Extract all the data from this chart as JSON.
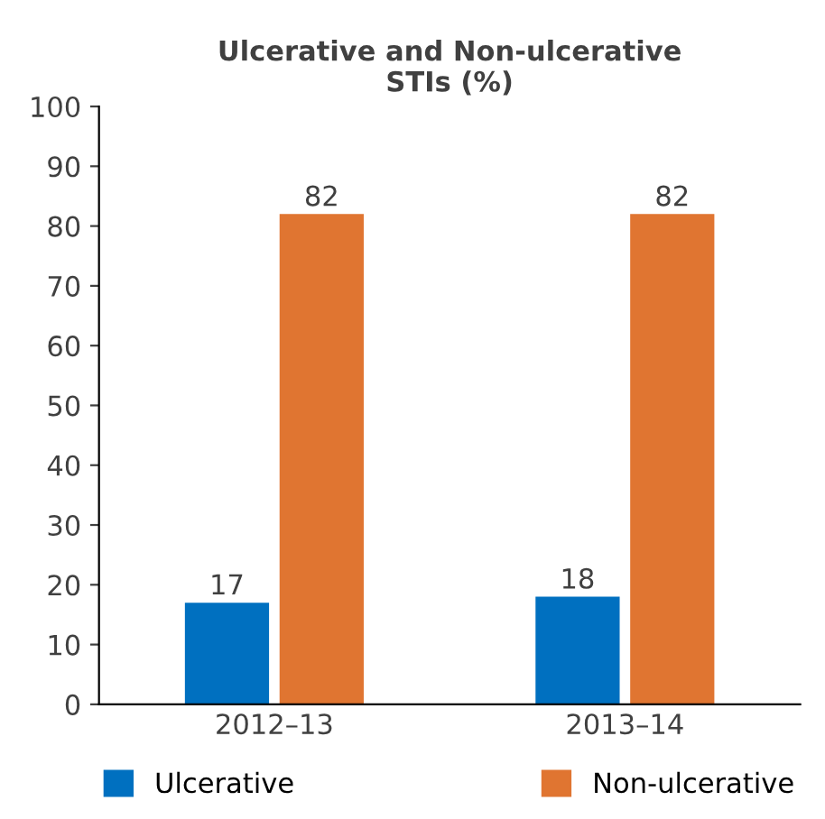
{
  "chart_data": {
    "type": "bar",
    "title": "Ulcerative and Non-ulcerative\nSTIs (%)",
    "categories": [
      "2012–13",
      "2013–14"
    ],
    "series": [
      {
        "name": "Ulcerative",
        "color": "#0070c0",
        "values": [
          17,
          18
        ]
      },
      {
        "name": "Non-ulcerative",
        "color": "#e07531",
        "values": [
          82,
          82
        ]
      }
    ],
    "ylim": [
      0,
      100
    ],
    "yticks": [
      0,
      10,
      20,
      30,
      40,
      50,
      60,
      70,
      80,
      90,
      100
    ],
    "data_labels": true,
    "grid": false,
    "legend": "bottom"
  }
}
